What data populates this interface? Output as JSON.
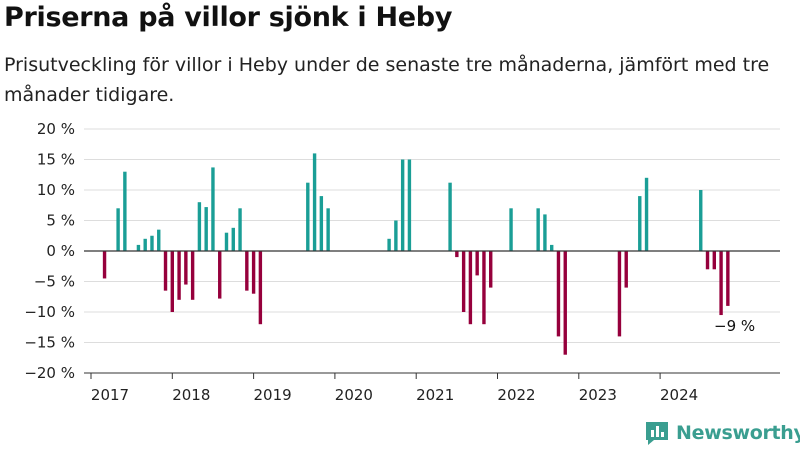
{
  "title": "Priserna på villor sjönk i Heby",
  "subtitle": "Prisutveckling för villor i Heby under de senaste tre månaderna, jämfört med tre månader tidigare.",
  "logo": {
    "text": "Newsworthy"
  },
  "colors": {
    "positive": "#1a9e96",
    "negative": "#96003c",
    "grid": "#dddddd",
    "zero_line": "#333333"
  },
  "chart_data": {
    "type": "bar",
    "xlabel": "",
    "ylabel": "",
    "ylim": [
      -20,
      20
    ],
    "y_ticks": [
      20,
      15,
      10,
      5,
      0,
      -5,
      -10,
      -15,
      -20
    ],
    "y_tick_labels": [
      "20 %",
      "15 %",
      "10 %",
      "5 %",
      "0 %",
      "−5 %",
      "−10 %",
      "−15 %",
      "−20 %"
    ],
    "x_ticks": [
      "2017",
      "2018",
      "2019",
      "2020",
      "2021",
      "2022",
      "2023",
      "2024"
    ],
    "grid": true,
    "annotation": {
      "label": "−9 %",
      "date": "2024-12"
    },
    "series": [
      {
        "values": [
          {
            "date": "2017-03",
            "value": -4.5
          },
          {
            "date": "2017-05",
            "value": 7
          },
          {
            "date": "2017-06",
            "value": 13
          },
          {
            "date": "2017-08",
            "value": 1
          },
          {
            "date": "2017-09",
            "value": 2
          },
          {
            "date": "2017-10",
            "value": 2.5
          },
          {
            "date": "2017-11",
            "value": 3.5
          },
          {
            "date": "2017-12",
            "value": -6.5
          },
          {
            "date": "2018-01",
            "value": -10
          },
          {
            "date": "2018-02",
            "value": -8
          },
          {
            "date": "2018-03",
            "value": -5.5
          },
          {
            "date": "2018-04",
            "value": -8
          },
          {
            "date": "2018-05",
            "value": 8
          },
          {
            "date": "2018-06",
            "value": 7.2
          },
          {
            "date": "2018-07",
            "value": 13.7
          },
          {
            "date": "2018-08",
            "value": -7.8
          },
          {
            "date": "2018-09",
            "value": 3
          },
          {
            "date": "2018-10",
            "value": 3.8
          },
          {
            "date": "2018-11",
            "value": 7
          },
          {
            "date": "2018-12",
            "value": -6.5
          },
          {
            "date": "2019-01",
            "value": -7
          },
          {
            "date": "2019-02",
            "value": -12
          },
          {
            "date": "2019-09",
            "value": 11.2
          },
          {
            "date": "2019-10",
            "value": 16
          },
          {
            "date": "2019-11",
            "value": 9
          },
          {
            "date": "2019-12",
            "value": 7
          },
          {
            "date": "2020-09",
            "value": 2
          },
          {
            "date": "2020-10",
            "value": 5
          },
          {
            "date": "2020-11",
            "value": 15
          },
          {
            "date": "2020-12",
            "value": 15
          },
          {
            "date": "2021-06",
            "value": 11.2
          },
          {
            "date": "2021-07",
            "value": -1
          },
          {
            "date": "2021-08",
            "value": -10
          },
          {
            "date": "2021-09",
            "value": -12
          },
          {
            "date": "2021-10",
            "value": -4
          },
          {
            "date": "2021-11",
            "value": -12
          },
          {
            "date": "2021-12",
            "value": -6
          },
          {
            "date": "2022-03",
            "value": 7
          },
          {
            "date": "2022-07",
            "value": 7
          },
          {
            "date": "2022-08",
            "value": 6
          },
          {
            "date": "2022-09",
            "value": 1
          },
          {
            "date": "2022-10",
            "value": -14
          },
          {
            "date": "2022-11",
            "value": -17
          },
          {
            "date": "2023-07",
            "value": -14
          },
          {
            "date": "2023-08",
            "value": -6
          },
          {
            "date": "2023-10",
            "value": 9
          },
          {
            "date": "2023-11",
            "value": 12
          },
          {
            "date": "2024-07",
            "value": 10
          },
          {
            "date": "2024-08",
            "value": -3
          },
          {
            "date": "2024-09",
            "value": -3
          },
          {
            "date": "2024-10",
            "value": -10.5
          },
          {
            "date": "2024-11",
            "value": -9
          }
        ]
      }
    ]
  }
}
